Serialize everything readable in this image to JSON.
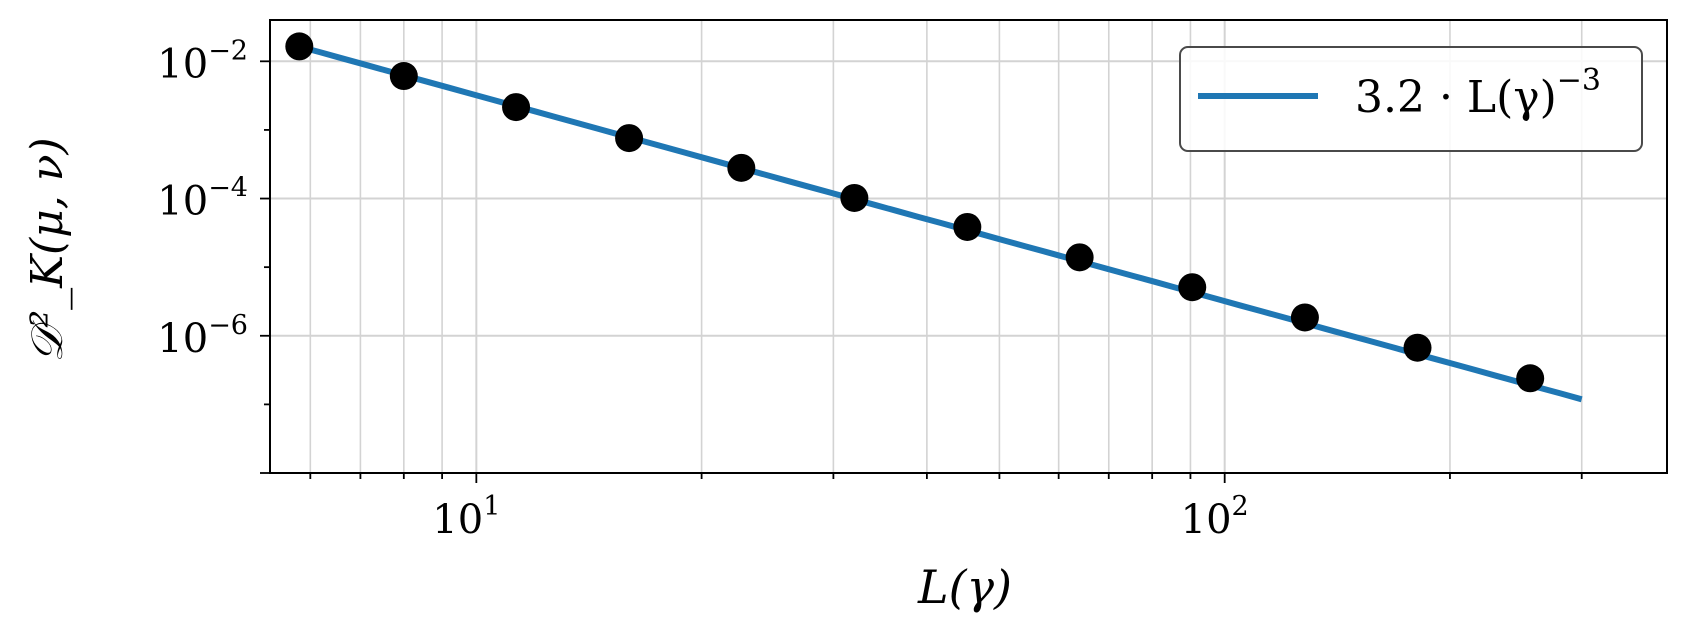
{
  "chart_data": {
    "type": "scatter",
    "x_scale": "log",
    "y_scale": "log",
    "xlim": [
      5.3,
      390
    ],
    "ylim": [
      1e-08,
      0.04
    ],
    "grid": true,
    "legend_position": "top-right",
    "xlabel": "L(γ)",
    "ylabel": "𝒟²_K(μ, ν)",
    "x_ticks": [
      {
        "value": 10,
        "base": "10",
        "exp": "1"
      },
      {
        "value": 100,
        "base": "10",
        "exp": "2"
      }
    ],
    "y_ticks": [
      {
        "value": 0.01,
        "base": "10",
        "exp": "−2"
      },
      {
        "value": 0.0001,
        "base": "10",
        "exp": "−4"
      },
      {
        "value": 1e-06,
        "base": "10",
        "exp": "−6"
      }
    ],
    "series": [
      {
        "kind": "markers",
        "color": "#000000",
        "x": [
          5.8,
          8.0,
          11.3,
          16.0,
          22.6,
          32.0,
          45.3,
          64.0,
          90.5,
          128.0,
          181.0,
          256.0
        ],
        "y": [
          0.0165,
          0.0061,
          0.00215,
          0.00076,
          0.00028,
          0.000102,
          3.85e-05,
          1.39e-05,
          5.1e-06,
          1.85e-06,
          6.7e-07,
          2.4e-07
        ]
      },
      {
        "kind": "line",
        "name": "3.2 · L(γ)^−3",
        "color": "#1f77b4",
        "coef": 3.2,
        "power": -3,
        "x_range": [
          5.8,
          300
        ]
      }
    ],
    "legend": {
      "label_prefix": "3.2 · L(γ)",
      "label_exp": "−3"
    }
  }
}
